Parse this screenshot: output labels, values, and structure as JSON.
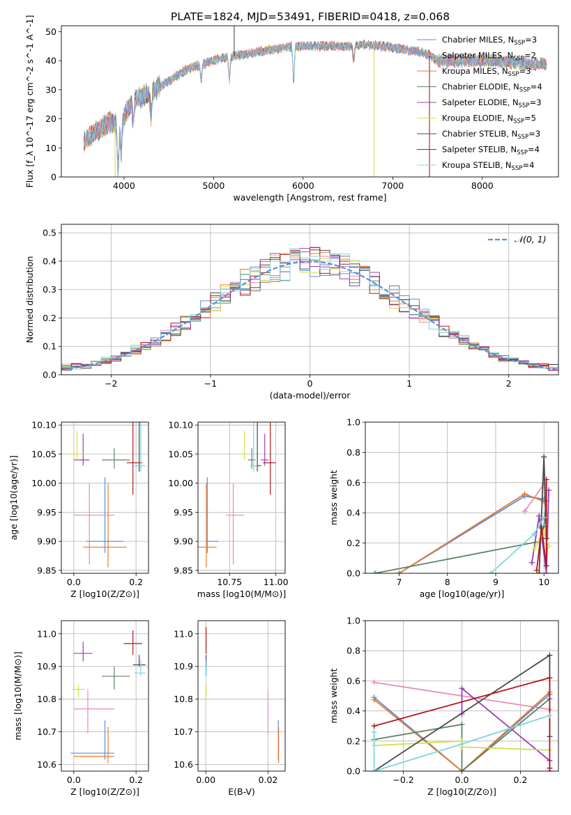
{
  "figure_title": "PLATE=1824, MJD=53491, FIBERID=0418, z=0.068",
  "colors": {
    "Chabrier MILES": "#5b8ed6",
    "Salpeter MILES": "#e889bd",
    "Kroupa MILES": "#e9782c",
    "Chabrier ELODIE": "#5a8361",
    "Salpeter ELODIE": "#9c3ab5",
    "Kroupa ELODIE": "#d1e04c",
    "Chabrier STELIB": "#4a4a4a",
    "Salpeter STELIB": "#b1181b",
    "Kroupa STELIB": "#7fd4df",
    "normal_curve": "#5b8ed6"
  },
  "chart_data": [
    {
      "id": "spectrum",
      "type": "line",
      "xlabel": "wavelength [Angstrom, rest frame]",
      "ylabel": "Flux [f_λ 10^-17 erg cm^-2 s^-1 A^-1]",
      "xlim": [
        3300,
        8850
      ],
      "ylim": [
        0,
        52
      ],
      "xticks": [
        4000,
        5000,
        6000,
        7000,
        8000
      ],
      "yticks": [
        0,
        10,
        20,
        30,
        40,
        50
      ],
      "grid": false,
      "legend_position": "top-right",
      "series": [
        {
          "name": "Chabrier MILES",
          "label": "Chabrier MILES, N",
          "nssp": "=3"
        },
        {
          "name": "Salpeter MILES",
          "label": "Salpeter MILES, N",
          "nssp": "=2"
        },
        {
          "name": "Kroupa MILES",
          "label": "Kroupa MILES, N",
          "nssp": "=3"
        },
        {
          "name": "Chabrier ELODIE",
          "label": "Chabrier ELODIE, N",
          "nssp": "=4"
        },
        {
          "name": "Salpeter ELODIE",
          "label": "Salpeter ELODIE, N",
          "nssp": "=3"
        },
        {
          "name": "Kroupa ELODIE",
          "label": "Kroupa ELODIE, N",
          "nssp": "=5"
        },
        {
          "name": "Chabrier STELIB",
          "label": "Chabrier STELIB, N",
          "nssp": "=3"
        },
        {
          "name": "Salpeter STELIB",
          "label": "Salpeter STELIB, N",
          "nssp": "=4"
        },
        {
          "name": "Kroupa STELIB",
          "label": "Kroupa STELIB, N",
          "nssp": "=4"
        }
      ],
      "legend_subscript": "SSP",
      "continuum": {
        "wavelength": [
          3550,
          3650,
          3750,
          3850,
          3950,
          4050,
          4150,
          4300,
          4500,
          4700,
          4900,
          5100,
          5300,
          5500,
          5700,
          5900,
          6100,
          6300,
          6500,
          6700,
          6900,
          7100,
          7300,
          7400,
          7500,
          7700,
          7900,
          8100,
          8300,
          8500,
          8700
        ],
        "flux": [
          12,
          15,
          17,
          19,
          17,
          24,
          27,
          29,
          33,
          37,
          39,
          41,
          42,
          43,
          44,
          45,
          45,
          45,
          45,
          45.5,
          45,
          44,
          43,
          42,
          40,
          40,
          40,
          40,
          39.5,
          39,
          39
        ]
      },
      "absorption_features": [
        {
          "wavelength": 3933,
          "depth": 15
        },
        {
          "wavelength": 3968,
          "depth": 10
        },
        {
          "wavelength": 4102,
          "depth": 6
        },
        {
          "wavelength": 4300,
          "depth": 8
        },
        {
          "wavelength": 4861,
          "depth": 5
        },
        {
          "wavelength": 5175,
          "depth": 8
        },
        {
          "wavelength": 5893,
          "depth": 12
        },
        {
          "wavelength": 6563,
          "depth": 5
        }
      ],
      "spikes": [
        {
          "wavelength": 3900,
          "flux_to": 0,
          "series": "Kroupa ELODIE"
        },
        {
          "wavelength": 6790,
          "flux_to": 0,
          "series": "Kroupa ELODIE"
        },
        {
          "wavelength": 5230,
          "flux_to": 52,
          "series": "Chabrier STELIB"
        },
        {
          "wavelength": 7410,
          "flux_to": 0,
          "series": "Salpeter STELIB"
        }
      ]
    },
    {
      "id": "residuals",
      "type": "histogram",
      "xlabel": "(data-model)/error",
      "ylabel": "Normed distribution",
      "xlim": [
        -2.5,
        2.5
      ],
      "ylim": [
        0,
        0.53
      ],
      "xticks": [
        -2,
        -1,
        0,
        1,
        2
      ],
      "yticks": [
        0.0,
        0.1,
        0.2,
        0.3,
        0.4,
        0.5
      ],
      "grid": true,
      "legend_position": "top-right",
      "legend": [
        {
          "label": "𝒩(0, 1)",
          "style": "dashed"
        }
      ],
      "bin_width": 0.1,
      "bin_range": [
        -2.5,
        2.5
      ]
    },
    {
      "id": "age_vs_Z",
      "type": "errorbar",
      "xlabel": "Z [log10(Z/Z⊙)]",
      "ylabel": "age  [log10(age/yr)]",
      "xlim": [
        -0.04,
        0.24
      ],
      "ylim": [
        9.845,
        10.105
      ],
      "xticks": [
        0.0,
        0.2
      ],
      "yticks": [
        9.85,
        9.9,
        9.95,
        10.0,
        10.05,
        10.1
      ],
      "grid": true,
      "points": [
        {
          "series": "Chabrier MILES",
          "x": 0.1,
          "xerr": [
            0.06,
            0.06
          ],
          "y": 9.9,
          "yerr": [
            0.02,
            0.11
          ]
        },
        {
          "series": "Salpeter MILES",
          "x": 0.05,
          "xerr": [
            0.05,
            0.08
          ],
          "y": 9.945,
          "yerr": [
            0.085,
            0.055
          ]
        },
        {
          "series": "Kroupa MILES",
          "x": 0.11,
          "xerr": [
            0.08,
            0.06
          ],
          "y": 9.89,
          "yerr": [
            0.035,
            0.11
          ]
        },
        {
          "series": "Chabrier ELODIE",
          "x": 0.13,
          "xerr": [
            0.04,
            0.05
          ],
          "y": 10.04,
          "yerr": [
            0.015,
            0.02
          ]
        },
        {
          "series": "Salpeter ELODIE",
          "x": 0.03,
          "xerr": [
            0.03,
            0.02
          ],
          "y": 10.04,
          "yerr": [
            0.01,
            0.045
          ]
        },
        {
          "series": "Kroupa ELODIE",
          "x": 0.01,
          "xerr": [
            0.03,
            0.03
          ],
          "y": 10.05,
          "yerr": [
            0.01,
            0.04
          ]
        },
        {
          "series": "Chabrier STELIB",
          "x": 0.21,
          "xerr": [
            0.01,
            0.01
          ],
          "y": 10.03,
          "yerr": [
            0.01,
            0.09
          ]
        },
        {
          "series": "Salpeter STELIB",
          "x": 0.19,
          "xerr": [
            0.02,
            0.03
          ],
          "y": 10.035,
          "yerr": [
            0.055,
            0.07
          ]
        },
        {
          "series": "Kroupa STELIB",
          "x": 0.215,
          "xerr": [
            0.02,
            0.015
          ],
          "y": 10.03,
          "yerr": [
            0.01,
            0.09
          ]
        }
      ]
    },
    {
      "id": "age_vs_mass",
      "type": "errorbar",
      "xlabel": "mass [log10(M/M⊙)]",
      "ylabel": "",
      "xlim": [
        10.58,
        11.05
      ],
      "ylim": [
        9.845,
        10.105
      ],
      "xticks": [
        10.75,
        11.0
      ],
      "yticks": [
        9.85,
        9.9,
        9.95,
        10.0,
        10.05,
        10.1
      ],
      "grid": true,
      "points": [
        {
          "series": "Chabrier MILES",
          "x": 10.63,
          "xerr": [
            0.0,
            0.06
          ],
          "y": 9.9,
          "yerr": [
            0.02,
            0.11
          ]
        },
        {
          "series": "Salpeter MILES",
          "x": 10.77,
          "xerr": [
            0.04,
            0.06
          ],
          "y": 9.945,
          "yerr": [
            0.085,
            0.055
          ]
        },
        {
          "series": "Kroupa MILES",
          "x": 10.625,
          "xerr": [
            0.045,
            0.055
          ],
          "y": 9.89,
          "yerr": [
            0.035,
            0.11
          ]
        },
        {
          "series": "Chabrier ELODIE",
          "x": 10.87,
          "xerr": [
            0.02,
            0.02
          ],
          "y": 10.04,
          "yerr": [
            0.015,
            0.02
          ]
        },
        {
          "series": "Salpeter ELODIE",
          "x": 10.94,
          "xerr": [
            0.02,
            0.02
          ],
          "y": 10.04,
          "yerr": [
            0.01,
            0.045
          ]
        },
        {
          "series": "Kroupa ELODIE",
          "x": 10.83,
          "xerr": [
            0.02,
            0.02
          ],
          "y": 10.05,
          "yerr": [
            0.01,
            0.04
          ]
        },
        {
          "series": "Chabrier STELIB",
          "x": 10.9,
          "xerr": [
            0.02,
            0.02
          ],
          "y": 10.03,
          "yerr": [
            0.01,
            0.09
          ]
        },
        {
          "series": "Salpeter STELIB",
          "x": 10.97,
          "xerr": [
            0.04,
            0.03
          ],
          "y": 10.035,
          "yerr": [
            0.055,
            0.07
          ]
        },
        {
          "series": "Kroupa STELIB",
          "x": 10.88,
          "xerr": [
            0.02,
            0.02
          ],
          "y": 10.03,
          "yerr": [
            0.01,
            0.09
          ]
        }
      ]
    },
    {
      "id": "weight_vs_age",
      "type": "line",
      "xlabel": "age  [log10(age/yr)]",
      "ylabel": "mass weight",
      "xlim": [
        6.3,
        10.3
      ],
      "ylim": [
        0.0,
        1.0
      ],
      "xticks": [
        7,
        8,
        9,
        10
      ],
      "yticks": [
        0.0,
        0.2,
        0.4,
        0.6,
        0.8,
        1.0
      ],
      "grid": true,
      "series": [
        {
          "name": "Chabrier MILES",
          "x": [
            7.0,
            9.6,
            10.0
          ],
          "y": [
            0.0,
            0.51,
            0.49
          ]
        },
        {
          "name": "Salpeter MILES",
          "x": [
            9.6,
            10.0
          ],
          "y": [
            0.41,
            0.59
          ]
        },
        {
          "name": "Kroupa MILES",
          "x": [
            7.0,
            9.6,
            10.0
          ],
          "y": [
            0.0,
            0.525,
            0.475
          ]
        },
        {
          "name": "Chabrier ELODIE",
          "x": [
            6.5,
            9.9,
            10.0,
            10.05
          ],
          "y": [
            0.0,
            0.21,
            0.31,
            0.48
          ]
        },
        {
          "name": "Salpeter ELODIE",
          "x": [
            9.75,
            9.9,
            10.05,
            10.1
          ],
          "y": [
            0.07,
            0.38,
            0.0,
            0.55
          ]
        },
        {
          "name": "Kroupa ELODIE",
          "x": [
            9.8,
            9.9,
            10.0,
            10.1
          ],
          "y": [
            0.16,
            0.21,
            0.28,
            0.18
          ]
        },
        {
          "name": "Chabrier STELIB",
          "x": [
            9.9,
            10.0,
            10.05
          ],
          "y": [
            0.0,
            0.77,
            0.23
          ]
        },
        {
          "name": "Salpeter STELIB",
          "x": [
            9.85,
            9.95,
            10.05,
            10.05
          ],
          "y": [
            0.02,
            0.3,
            0.05,
            0.62
          ]
        },
        {
          "name": "Kroupa STELIB",
          "x": [
            8.9,
            9.8,
            10.0
          ],
          "y": [
            0.0,
            0.26,
            0.37
          ]
        }
      ]
    },
    {
      "id": "mass_vs_Z",
      "type": "errorbar",
      "xlabel": "Z [log10(Z/Z⊙)]",
      "ylabel": "mass [log10(M/M⊙)]",
      "xlim": [
        -0.04,
        0.24
      ],
      "ylim": [
        10.58,
        11.04
      ],
      "xticks": [
        0.0,
        0.2
      ],
      "yticks": [
        10.6,
        10.7,
        10.8,
        10.9,
        11.0
      ],
      "grid": true,
      "points": [
        {
          "series": "Chabrier MILES",
          "x": 0.1,
          "xerr": [
            0.11,
            0.03
          ],
          "y": 10.635,
          "yerr": [
            0.02,
            0.1
          ]
        },
        {
          "series": "Salpeter MILES",
          "x": 0.045,
          "xerr": [
            0.045,
            0.085
          ],
          "y": 10.77,
          "yerr": [
            0.075,
            0.06
          ]
        },
        {
          "series": "Kroupa MILES",
          "x": 0.11,
          "xerr": [
            0.11,
            0.02
          ],
          "y": 10.625,
          "yerr": [
            0.02,
            0.09
          ]
        },
        {
          "series": "Chabrier ELODIE",
          "x": 0.13,
          "xerr": [
            0.04,
            0.05
          ],
          "y": 10.87,
          "yerr": [
            0.04,
            0.03
          ]
        },
        {
          "series": "Salpeter ELODIE",
          "x": 0.03,
          "xerr": [
            0.03,
            0.03
          ],
          "y": 10.94,
          "yerr": [
            0.025,
            0.035
          ]
        },
        {
          "series": "Kroupa ELODIE",
          "x": 0.015,
          "xerr": [
            0.02,
            0.02
          ],
          "y": 10.83,
          "yerr": [
            0.025,
            0.015
          ]
        },
        {
          "series": "Chabrier STELIB",
          "x": 0.21,
          "xerr": [
            0.02,
            0.02
          ],
          "y": 10.905,
          "yerr": [
            0.005,
            0.03
          ]
        },
        {
          "series": "Salpeter STELIB",
          "x": 0.19,
          "xerr": [
            0.03,
            0.03
          ],
          "y": 10.97,
          "yerr": [
            0.035,
            0.04
          ]
        },
        {
          "series": "Kroupa STELIB",
          "x": 0.215,
          "xerr": [
            0.02,
            0.015
          ],
          "y": 10.88,
          "yerr": [
            0.01,
            0.04
          ]
        }
      ]
    },
    {
      "id": "mass_vs_ebv",
      "type": "errorbar",
      "xlabel": "E(B-V)",
      "ylabel": "",
      "xlim": [
        -0.0025,
        0.0255
      ],
      "ylim": [
        10.58,
        11.04
      ],
      "xticks": [
        0.0,
        0.02
      ],
      "yticks": [
        10.6,
        10.7,
        10.8,
        10.9,
        11.0
      ],
      "grid": true,
      "points": [
        {
          "series": "Salpeter STELIB",
          "x": 0.0001,
          "xerr": [
            0,
            0
          ],
          "y": 10.97,
          "yerr": [
            0.03,
            0.05
          ]
        },
        {
          "series": "Chabrier STELIB",
          "x": 0.0001,
          "xerr": [
            0,
            0
          ],
          "y": 10.905,
          "yerr": [
            0.005,
            0.03
          ]
        },
        {
          "series": "Kroupa STELIB",
          "x": 0.0002,
          "xerr": [
            0,
            0
          ],
          "y": 10.88,
          "yerr": [
            0.01,
            0.04
          ]
        },
        {
          "series": "Kroupa ELODIE",
          "x": 0.0001,
          "xerr": [
            0,
            0
          ],
          "y": 10.83,
          "yerr": [
            0.025,
            0.015
          ]
        },
        {
          "series": "Salpeter MILES",
          "x": 0.02,
          "xerr": [
            0,
            0
          ],
          "y": 10.77,
          "yerr": [
            0.075,
            0.06
          ]
        },
        {
          "series": "Chabrier MILES",
          "x": 0.0233,
          "xerr": [
            0,
            0
          ],
          "y": 10.635,
          "yerr": [
            0.02,
            0.1
          ]
        },
        {
          "series": "Kroupa MILES",
          "x": 0.0234,
          "xerr": [
            0,
            0
          ],
          "y": 10.625,
          "yerr": [
            0.02,
            0.09
          ]
        }
      ]
    },
    {
      "id": "weight_vs_Z",
      "type": "line",
      "xlabel": "Z [log10(Z/Z⊙)]",
      "ylabel": "mass weight",
      "xlim": [
        -0.33,
        0.33
      ],
      "ylim": [
        0.0,
        1.0
      ],
      "xticks": [
        -0.2,
        0.0,
        0.2
      ],
      "yticks": [
        0.0,
        0.2,
        0.4,
        0.6,
        0.8,
        1.0
      ],
      "grid": true,
      "series": [
        {
          "name": "Chabrier MILES",
          "x": [
            -0.3,
            0.0,
            0.3
          ],
          "y": [
            0.49,
            0.0,
            0.51
          ]
        },
        {
          "name": "Salpeter MILES",
          "x": [
            -0.3,
            0.3
          ],
          "y": [
            0.59,
            0.41
          ]
        },
        {
          "name": "Kroupa MILES",
          "x": [
            -0.3,
            0.0,
            0.3
          ],
          "y": [
            0.475,
            0.0,
            0.525
          ]
        },
        {
          "name": "Chabrier ELODIE",
          "x": [
            -0.3,
            0.0,
            0.0,
            0.3
          ],
          "y": [
            0.21,
            0.31,
            0.0,
            0.48
          ]
        },
        {
          "name": "Salpeter ELODIE",
          "x": [
            0.0,
            0.0,
            0.3,
            0.3
          ],
          "y": [
            0.38,
            0.55,
            0.07,
            0.0
          ]
        },
        {
          "name": "Kroupa ELODIE",
          "x": [
            -0.3,
            0.0,
            0.0,
            0.3
          ],
          "y": [
            0.17,
            0.2,
            0.16,
            0.14
          ]
        },
        {
          "name": "Chabrier STELIB",
          "x": [
            -0.3,
            0.3,
            0.3
          ],
          "y": [
            0.0,
            0.77,
            0.23
          ]
        },
        {
          "name": "Salpeter STELIB",
          "x": [
            -0.3,
            0.3,
            0.3
          ],
          "y": [
            0.3,
            0.62,
            0.02
          ]
        },
        {
          "name": "Kroupa STELIB",
          "x": [
            -0.3,
            -0.3,
            0.0,
            0.3
          ],
          "y": [
            0.26,
            0.0,
            0.18,
            0.37
          ]
        }
      ]
    }
  ]
}
